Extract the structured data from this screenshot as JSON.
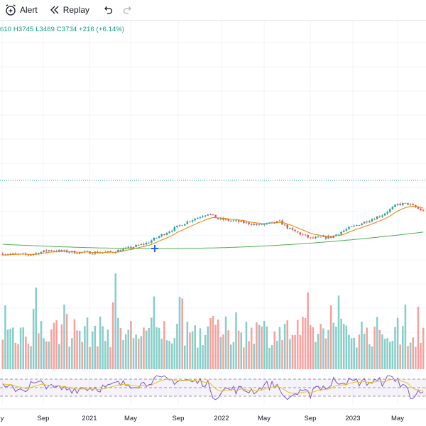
{
  "toolbar": {
    "alert_label": "Alert",
    "replay_label": "Replay",
    "alert_icon": "alarm-clock-plus-icon",
    "replay_icon": "rewind-icon",
    "undo_icon": "undo-icon",
    "redo_icon": "redo-icon"
  },
  "legend": {
    "ohlc_text": "610 H3745 L3469 C3734 +216 (+6.14%)"
  },
  "colors": {
    "up": "#26a69a",
    "down": "#ef5350",
    "ema_fast": "#f57c00",
    "ema_slow": "#4caf50",
    "rsi_line": "#7e57c2",
    "rsi_signal": "#e6c619",
    "rsi_band": "#7e57c2",
    "cursor": "#2962ff"
  },
  "chart_data": {
    "type": "candlestick",
    "x_ticks": [
      "y",
      "Sep",
      "2021",
      "May",
      "Sep",
      "2022",
      "May",
      "Sep",
      "2023",
      "May"
    ],
    "price_anchors": [
      [
        0,
        2410
      ],
      [
        10,
        2390
      ],
      [
        18,
        2460
      ],
      [
        30,
        2425
      ],
      [
        42,
        2430
      ],
      [
        48,
        2480
      ],
      [
        56,
        2560
      ],
      [
        64,
        2720
      ],
      [
        72,
        2870
      ],
      [
        80,
        2990
      ],
      [
        84,
        2910
      ],
      [
        92,
        2870
      ],
      [
        100,
        2820
      ],
      [
        108,
        2870
      ],
      [
        112,
        2760
      ],
      [
        120,
        2630
      ],
      [
        128,
        2650
      ],
      [
        134,
        2760
      ],
      [
        142,
        2880
      ],
      [
        148,
        2970
      ],
      [
        154,
        3120
      ],
      [
        158,
        3130
      ],
      [
        164,
        3020
      ]
    ],
    "cursor_marker": "plus",
    "rsi_levels": [
      70,
      50,
      30
    ]
  }
}
